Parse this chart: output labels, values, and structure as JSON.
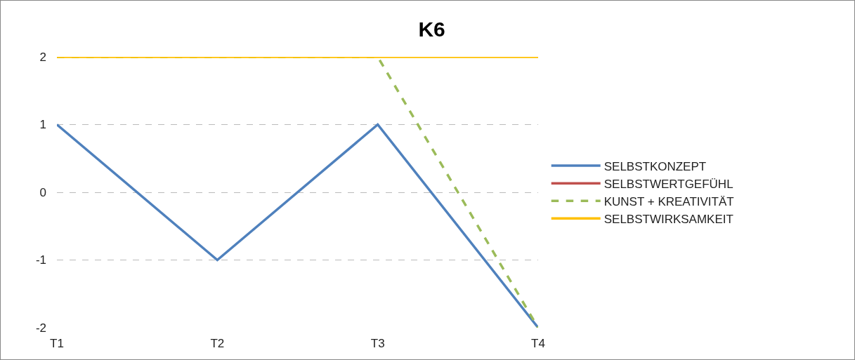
{
  "chart_data": {
    "type": "line",
    "title": "K6",
    "categories": [
      "T1",
      "T2",
      "T3",
      "T4"
    ],
    "ylim": [
      -2,
      2
    ],
    "yticks": [
      -2,
      -1,
      0,
      1,
      2
    ],
    "grid": "y",
    "legend": "right",
    "marker": "none",
    "series": [
      {
        "name": "SELBSTKONZEPT",
        "color": "#4f81bd",
        "values": [
          1,
          -1,
          1,
          -2
        ],
        "line_style": "solid"
      },
      {
        "name": "SELBSTWERTGEFÜHL",
        "color": "#c0504d",
        "values": [
          null,
          null,
          null,
          null
        ],
        "line_style": "solid"
      },
      {
        "name": "KUNST + KREATIVITÄT",
        "color": "#9bbb59",
        "values": [
          2,
          2,
          2,
          -2
        ],
        "line_style": "dashed"
      },
      {
        "name": "SELBSTWIRKSAMKEIT",
        "color": "#ffc000",
        "values": [
          2,
          2,
          2,
          2
        ],
        "line_style": "solid"
      }
    ]
  }
}
